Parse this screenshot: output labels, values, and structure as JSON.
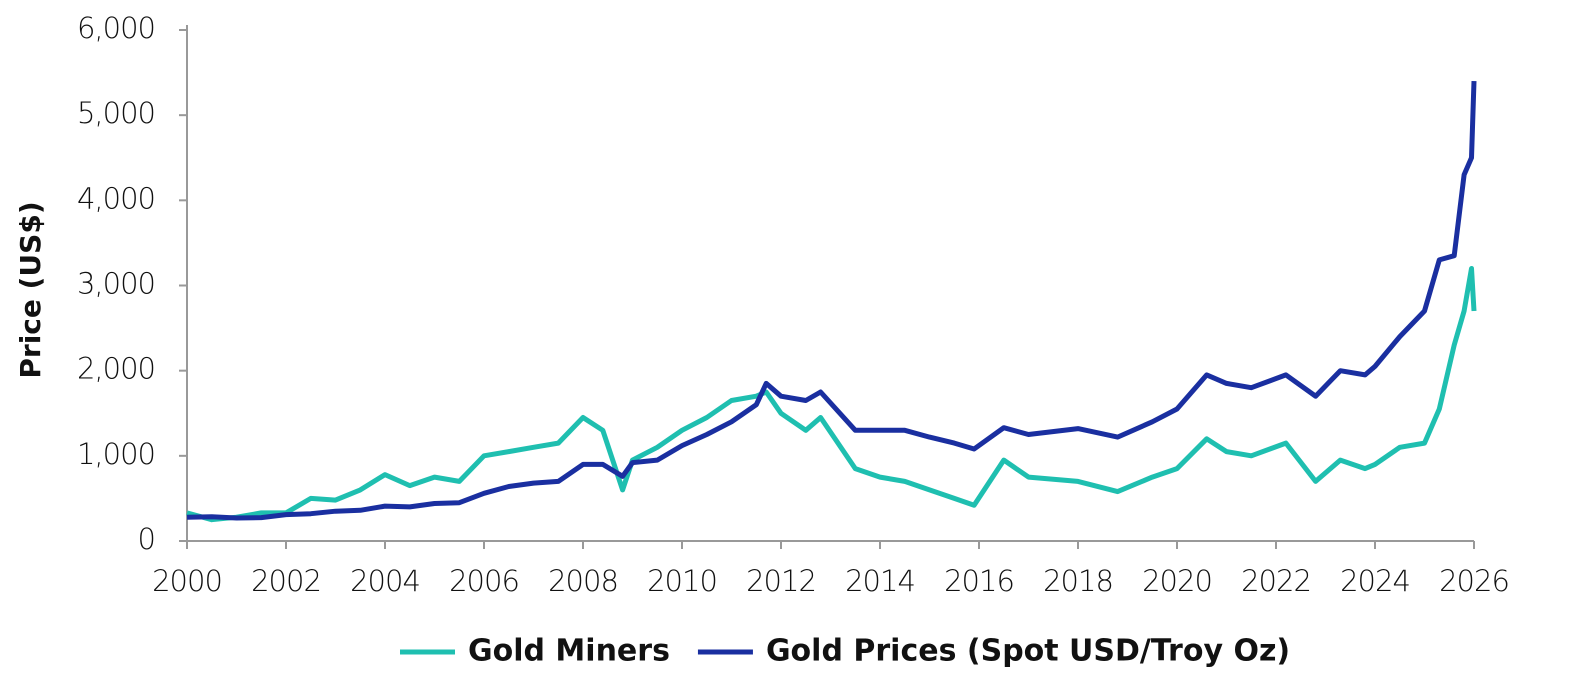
{
  "chart_data": {
    "type": "line",
    "y_label": "Price (US$)",
    "x": [
      2000,
      2000.5,
      2001,
      2001.5,
      2002,
      2002.5,
      2003,
      2003.5,
      2004,
      2004.5,
      2005,
      2005.5,
      2006,
      2006.5,
      2007,
      2007.5,
      2008,
      2008.4,
      2008.8,
      2009,
      2009.5,
      2010,
      2010.5,
      2011,
      2011.5,
      2011.7,
      2012,
      2012.5,
      2012.8,
      2013.5,
      2014,
      2014.5,
      2015,
      2015.5,
      2015.9,
      2016.5,
      2017,
      2018,
      2018.8,
      2019.5,
      2020,
      2020.6,
      2021,
      2021.5,
      2022.2,
      2022.8,
      2023.3,
      2023.8,
      2024,
      2024.5,
      2025,
      2025.3,
      2025.6,
      2025.8,
      2025.95,
      2026
    ],
    "series": [
      {
        "name": "Gold Miners",
        "color": "#1fbfb0",
        "values": [
          330,
          250,
          280,
          330,
          330,
          500,
          480,
          600,
          780,
          650,
          750,
          700,
          1000,
          1050,
          1100,
          1150,
          1450,
          1300,
          600,
          950,
          1100,
          1300,
          1450,
          1650,
          1700,
          1750,
          1500,
          1300,
          1450,
          850,
          750,
          700,
          600,
          500,
          420,
          950,
          750,
          700,
          580,
          750,
          850,
          1200,
          1050,
          1000,
          1150,
          700,
          950,
          850,
          900,
          1100,
          1150,
          1550,
          2300,
          2700,
          3200,
          2700
        ]
      },
      {
        "name": "Gold Prices (Spot USD/Troy Oz)",
        "color": "#1a2fa0",
        "values": [
          280,
          285,
          270,
          275,
          310,
          320,
          350,
          360,
          410,
          400,
          440,
          450,
          560,
          640,
          680,
          700,
          900,
          900,
          760,
          920,
          950,
          1120,
          1250,
          1400,
          1600,
          1850,
          1700,
          1650,
          1750,
          1300,
          1300,
          1300,
          1220,
          1150,
          1080,
          1330,
          1250,
          1320,
          1220,
          1400,
          1550,
          1950,
          1850,
          1800,
          1950,
          1700,
          2000,
          1950,
          2050,
          2400,
          2700,
          3300,
          3350,
          4300,
          4500,
          5400
        ]
      }
    ],
    "xlim": [
      2000,
      2026
    ],
    "xticks": [
      2000,
      2002,
      2004,
      2006,
      2008,
      2010,
      2012,
      2014,
      2016,
      2018,
      2020,
      2022,
      2024,
      2026
    ],
    "ylim": [
      0,
      6000
    ],
    "yticks": [
      0,
      {
        "value": 1000,
        "label": "1,000"
      },
      {
        "value": 2000,
        "label": "2,000"
      },
      {
        "value": 3000,
        "label": "3,000"
      },
      {
        "value": 4000,
        "label": "4,000"
      },
      {
        "value": 5000,
        "label": "5,000"
      },
      {
        "value": 6000,
        "label": "6,000"
      }
    ],
    "legend": "bottom"
  }
}
